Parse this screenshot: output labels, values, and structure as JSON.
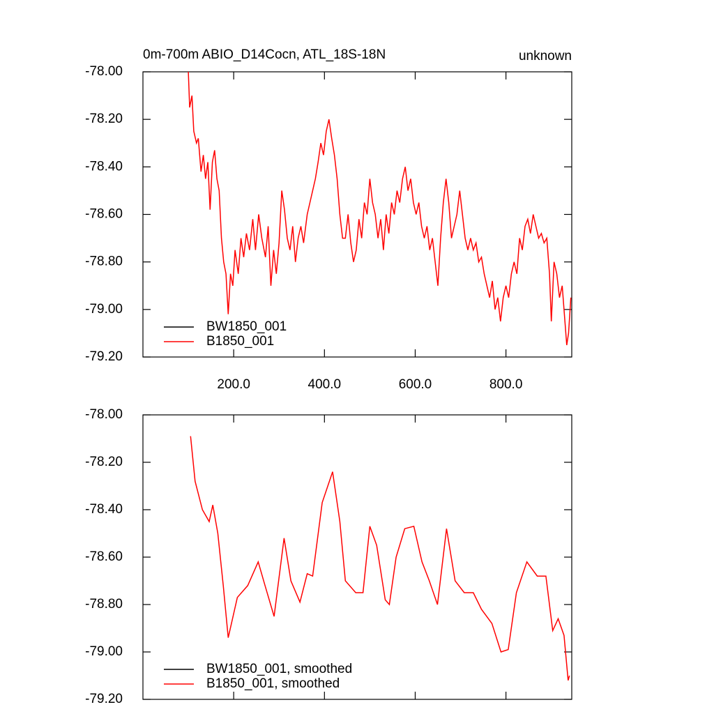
{
  "chart_data": [
    {
      "type": "line",
      "title": "0m-700m ABIO_D14Cocn, ATL_18S-18N",
      "right_title": "unknown",
      "xlim": [
        0,
        945
      ],
      "ylim": [
        -79.2,
        -78.0
      ],
      "xticks": [
        {
          "value": 200,
          "label": "200.0"
        },
        {
          "value": 400,
          "label": "400.0"
        },
        {
          "value": 600,
          "label": "600.0"
        },
        {
          "value": 800,
          "label": "800.0"
        }
      ],
      "yticks": [
        {
          "value": -78.0,
          "label": "-78.00"
        },
        {
          "value": -78.2,
          "label": "-78.20"
        },
        {
          "value": -78.4,
          "label": "-78.40"
        },
        {
          "value": -78.6,
          "label": "-78.60"
        },
        {
          "value": -78.8,
          "label": "-78.80"
        },
        {
          "value": -79.0,
          "label": "-79.00"
        },
        {
          "value": -79.2,
          "label": "-79.20"
        }
      ],
      "legend": "lower left",
      "series": [
        {
          "name": "BW1850_001",
          "color": "#000000",
          "x": [],
          "values": []
        },
        {
          "name": "B1850_001",
          "color": "#ff0000",
          "x": [
            100,
            103,
            108,
            112,
            118,
            122,
            128,
            133,
            138,
            143,
            148,
            153,
            158,
            163,
            168,
            173,
            178,
            183,
            188,
            193,
            198,
            203,
            210,
            216,
            222,
            228,
            235,
            242,
            248,
            255,
            262,
            270,
            276,
            282,
            288,
            294,
            300,
            306,
            312,
            318,
            324,
            330,
            336,
            342,
            348,
            354,
            362,
            368,
            374,
            380,
            386,
            392,
            398,
            404,
            410,
            416,
            422,
            428,
            434,
            440,
            446,
            452,
            458,
            464,
            470,
            476,
            482,
            488,
            494,
            500,
            506,
            512,
            518,
            524,
            530,
            536,
            542,
            548,
            554,
            560,
            566,
            572,
            578,
            584,
            590,
            596,
            602,
            608,
            614,
            620,
            626,
            632,
            638,
            644,
            650,
            656,
            662,
            668,
            674,
            680,
            686,
            692,
            698,
            704,
            710,
            716,
            722,
            728,
            734,
            740,
            746,
            752,
            758,
            764,
            770,
            776,
            782,
            788,
            794,
            800,
            806,
            812,
            818,
            824,
            830,
            836,
            842,
            848,
            854,
            860,
            866,
            872,
            878,
            884,
            890,
            896,
            900,
            906,
            912,
            918,
            924,
            930,
            934,
            938,
            943
          ],
          "values": [
            -78.0,
            -78.15,
            -78.1,
            -78.25,
            -78.3,
            -78.28,
            -78.42,
            -78.35,
            -78.45,
            -78.38,
            -78.58,
            -78.38,
            -78.33,
            -78.45,
            -78.5,
            -78.7,
            -78.8,
            -78.85,
            -79.02,
            -78.85,
            -78.9,
            -78.75,
            -78.85,
            -78.7,
            -78.78,
            -78.68,
            -78.75,
            -78.62,
            -78.75,
            -78.6,
            -78.7,
            -78.78,
            -78.65,
            -78.9,
            -78.75,
            -78.85,
            -78.72,
            -78.5,
            -78.58,
            -78.7,
            -78.75,
            -78.65,
            -78.8,
            -78.7,
            -78.65,
            -78.72,
            -78.6,
            -78.55,
            -78.5,
            -78.45,
            -78.38,
            -78.3,
            -78.35,
            -78.25,
            -78.2,
            -78.28,
            -78.35,
            -78.45,
            -78.6,
            -78.7,
            -78.7,
            -78.6,
            -78.72,
            -78.8,
            -78.75,
            -78.62,
            -78.7,
            -78.55,
            -78.6,
            -78.45,
            -78.55,
            -78.6,
            -78.7,
            -78.62,
            -78.75,
            -78.6,
            -78.68,
            -78.55,
            -78.6,
            -78.5,
            -78.55,
            -78.45,
            -78.4,
            -78.5,
            -78.45,
            -78.55,
            -78.6,
            -78.55,
            -78.65,
            -78.7,
            -78.65,
            -78.75,
            -78.7,
            -78.8,
            -78.9,
            -78.7,
            -78.55,
            -78.45,
            -78.55,
            -78.7,
            -78.65,
            -78.6,
            -78.5,
            -78.6,
            -78.7,
            -78.75,
            -78.7,
            -78.75,
            -78.72,
            -78.8,
            -78.78,
            -78.85,
            -78.9,
            -78.95,
            -78.88,
            -79.0,
            -78.95,
            -79.05,
            -78.95,
            -78.9,
            -78.95,
            -78.85,
            -78.8,
            -78.85,
            -78.7,
            -78.75,
            -78.65,
            -78.62,
            -78.68,
            -78.6,
            -78.65,
            -78.7,
            -78.68,
            -78.72,
            -78.7,
            -78.85,
            -79.05,
            -78.8,
            -78.85,
            -78.95,
            -78.9,
            -79.05,
            -79.15,
            -79.1,
            -78.95
          ]
        }
      ]
    },
    {
      "type": "line",
      "xlim": [
        0,
        945
      ],
      "ylim": [
        -79.2,
        -78.0
      ],
      "xticks": [
        200,
        400,
        600,
        800
      ],
      "yticks": [
        {
          "value": -78.0,
          "label": "-78.00"
        },
        {
          "value": -78.2,
          "label": "-78.20"
        },
        {
          "value": -78.4,
          "label": "-78.40"
        },
        {
          "value": -78.6,
          "label": "-78.60"
        },
        {
          "value": -78.8,
          "label": "-78.80"
        },
        {
          "value": -79.0,
          "label": "-79.00"
        },
        {
          "value": -79.2,
          "label": "-79.20"
        }
      ],
      "legend": "lower left",
      "series": [
        {
          "name": "BW1850_001, smoothed",
          "color": "#000000",
          "x": [],
          "values": []
        },
        {
          "name": "B1850_001, smoothed",
          "color": "#ff0000",
          "x": [
            105,
            115,
            131,
            146,
            154,
            165,
            177,
            188,
            208,
            231,
            254,
            269,
            289,
            311,
            326,
            346,
            362,
            374,
            395,
            418,
            434,
            446,
            469,
            485,
            500,
            515,
            534,
            543,
            558,
            577,
            597,
            615,
            631,
            649,
            669,
            688,
            708,
            728,
            746,
            769,
            789,
            805,
            823,
            846,
            869,
            888,
            903,
            915,
            928,
            937,
            940
          ],
          "values": [
            -78.09,
            -78.28,
            -78.4,
            -78.45,
            -78.38,
            -78.5,
            -78.72,
            -78.94,
            -78.77,
            -78.72,
            -78.62,
            -78.72,
            -78.85,
            -78.52,
            -78.7,
            -78.79,
            -78.67,
            -78.68,
            -78.37,
            -78.24,
            -78.45,
            -78.7,
            -78.75,
            -78.75,
            -78.47,
            -78.55,
            -78.78,
            -78.8,
            -78.6,
            -78.48,
            -78.47,
            -78.62,
            -78.7,
            -78.8,
            -78.48,
            -78.7,
            -78.75,
            -78.75,
            -78.82,
            -78.88,
            -79.0,
            -78.99,
            -78.75,
            -78.62,
            -78.68,
            -78.68,
            -78.91,
            -78.86,
            -78.93,
            -79.12,
            -79.1
          ]
        }
      ]
    }
  ]
}
